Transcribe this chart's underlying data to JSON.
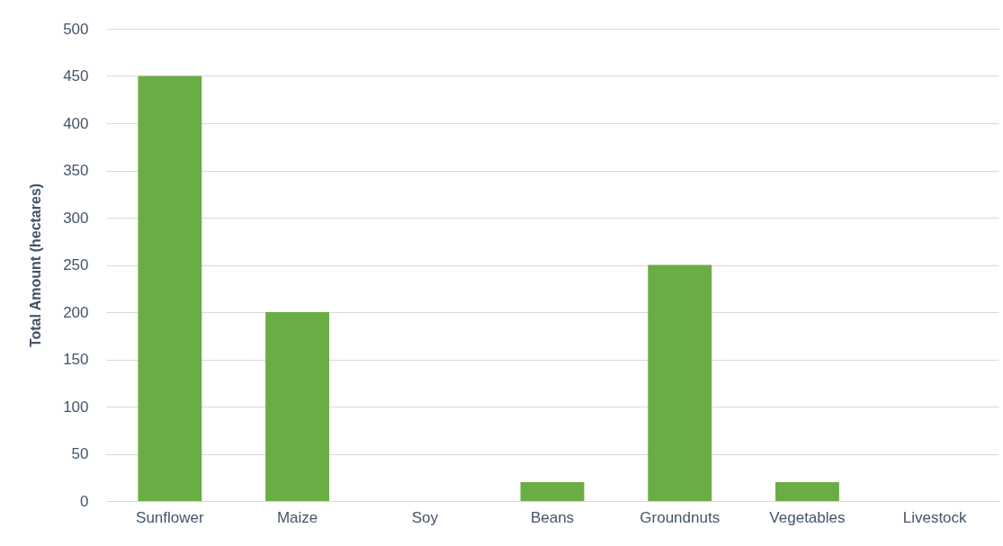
{
  "chart_data": {
    "type": "bar",
    "ylabel": "Total Amount (hectares)",
    "categories": [
      "Sunflower",
      "Maize",
      "Soy",
      "Beans",
      "Groundnuts",
      "Vegetables",
      "Livestock"
    ],
    "values": [
      450,
      200,
      0,
      20,
      250,
      20,
      0
    ],
    "color": "#6aad45",
    "ylim": [
      0,
      500
    ],
    "yticks": [
      0,
      50,
      100,
      150,
      200,
      250,
      300,
      350,
      400,
      450,
      500
    ],
    "grid": "y"
  }
}
